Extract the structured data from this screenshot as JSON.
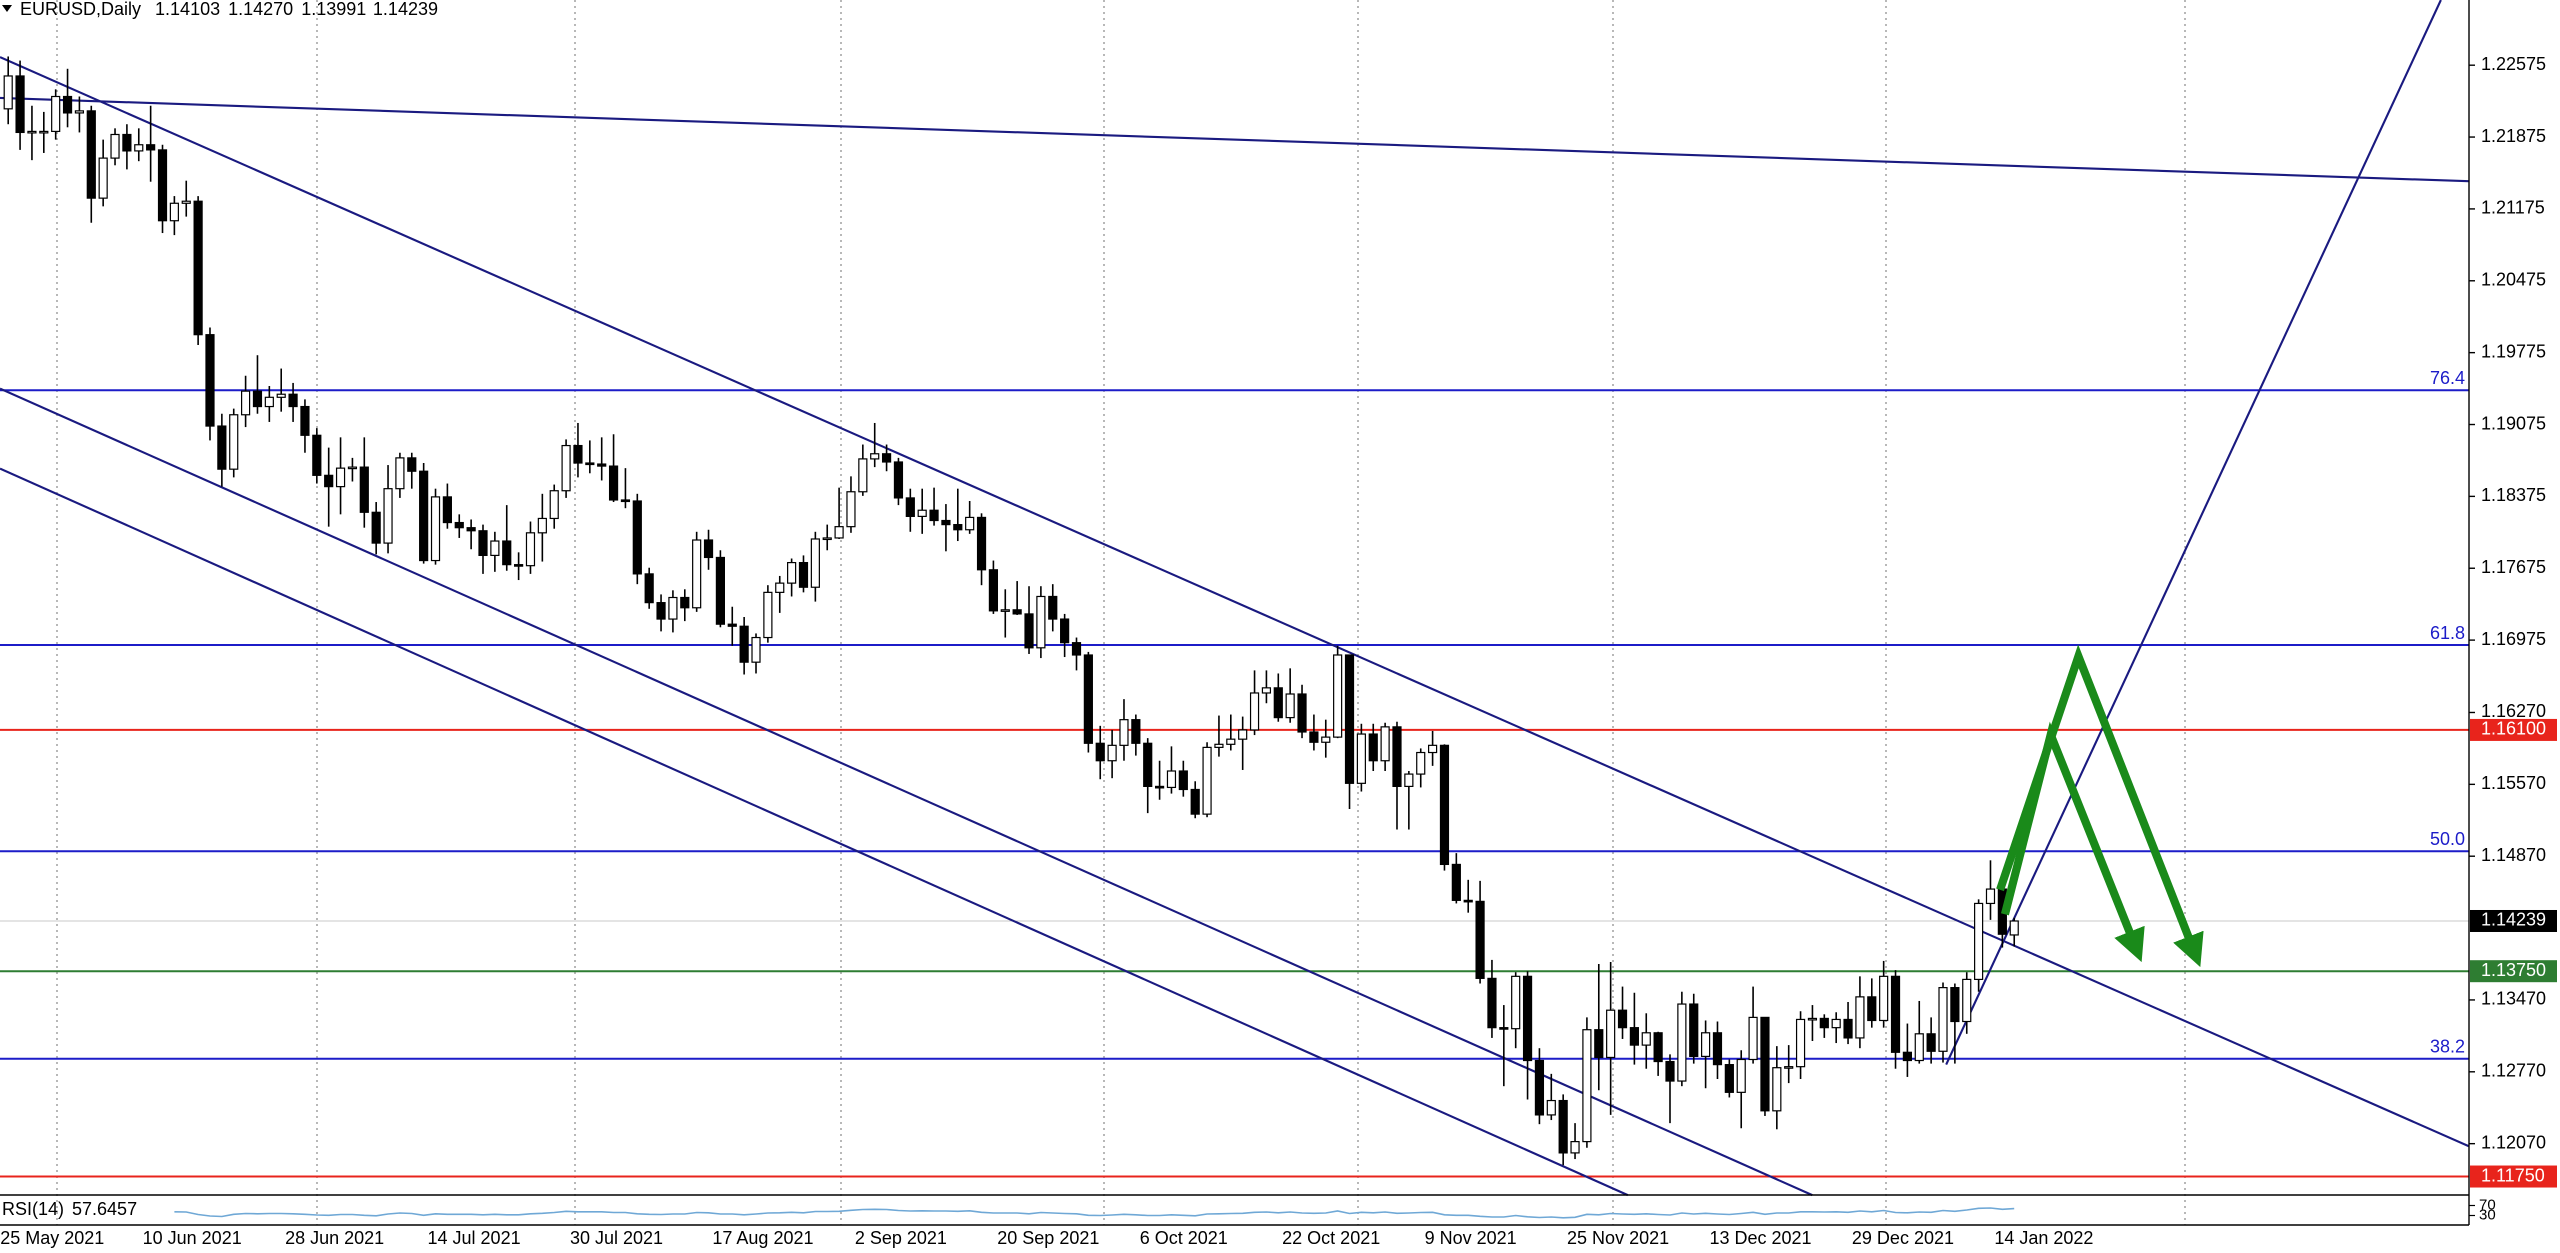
{
  "chart_data": {
    "type": "candlestick",
    "symbol": "EURUSD,Daily",
    "ohlc_labels": [
      "1.14103",
      "1.14270",
      "1.13991",
      "1.14239"
    ],
    "candle_up_color": "#ffffff",
    "candle_down_color": "#000000",
    "ylim": [
      1.1157,
      1.2321
    ],
    "yticks": [
      1.22575,
      1.21875,
      1.21175,
      1.20475,
      1.19775,
      1.19075,
      1.18375,
      1.17675,
      1.16975,
      {
        "value": 1.1627,
        "label": "1.16270"
      },
      {
        "value": 1.1557,
        "label": "1.15570"
      },
      {
        "value": 1.1487,
        "label": "1.14870"
      },
      {
        "value": 1.1347,
        "label": "1.13470"
      },
      {
        "value": 1.1277,
        "label": "1.12770"
      },
      {
        "value": 1.1207,
        "label": "1.12070"
      }
    ],
    "fib_color": "#1c1cc8",
    "fib_levels": [
      {
        "value": 1.19409,
        "label": "76.4"
      },
      {
        "value": 1.16927,
        "label": "61.8"
      },
      {
        "value": 1.14918,
        "label": "50.0"
      },
      {
        "value": 1.12897,
        "label": "38.2"
      }
    ],
    "price_levels": [
      {
        "value": 1.161,
        "label": "1.16100",
        "color": "#e8241c"
      },
      {
        "value": 1.1375,
        "label": "1.13750",
        "color": "#2e7d32"
      },
      {
        "value": 1.1175,
        "label": "1.11750",
        "color": "#e8241c"
      }
    ],
    "price_line": {
      "value": 1.14239,
      "label": "1.14239",
      "color": "#000000"
    },
    "categories": [
      "25 May 2021",
      null,
      null,
      null,
      null,
      null,
      null,
      null,
      null,
      null,
      null,
      null,
      "10 Jun 2021",
      null,
      null,
      null,
      null,
      null,
      null,
      null,
      null,
      null,
      null,
      null,
      "28 Jun 2021",
      null,
      null,
      null,
      null,
      null,
      null,
      null,
      null,
      null,
      null,
      null,
      "14 Jul 2021",
      null,
      null,
      null,
      null,
      null,
      null,
      null,
      null,
      null,
      null,
      null,
      "30 Jul 2021",
      null,
      null,
      null,
      null,
      null,
      null,
      null,
      null,
      null,
      null,
      null,
      "17 Aug 2021",
      null,
      null,
      null,
      null,
      null,
      null,
      null,
      null,
      null,
      null,
      null,
      "2 Sep 2021",
      null,
      null,
      null,
      null,
      null,
      null,
      null,
      null,
      null,
      null,
      null,
      "20 Sep 2021",
      null,
      null,
      null,
      null,
      null,
      null,
      null,
      null,
      null,
      null,
      null,
      "6 Oct 2021",
      null,
      null,
      null,
      null,
      null,
      null,
      null,
      null,
      null,
      null,
      null,
      "22 Oct 2021",
      null,
      null,
      null,
      null,
      null,
      null,
      null,
      null,
      null,
      null,
      null,
      "9 Nov 2021",
      null,
      null,
      null,
      null,
      null,
      null,
      null,
      null,
      null,
      null,
      null,
      "25 Nov 2021",
      null,
      null,
      null,
      null,
      null,
      null,
      null,
      null,
      null,
      null,
      null,
      "13 Dec 2021",
      null,
      null,
      null,
      null,
      null,
      null,
      null,
      null,
      null,
      null,
      null,
      "29 Dec 2021",
      null,
      null,
      null,
      null,
      null,
      null,
      null,
      null,
      null,
      null,
      null,
      "14 Jan 2022",
      null
    ],
    "candles": [
      [
        1.2215,
        1.2266,
        1.22,
        1.2247
      ],
      [
        1.2247,
        1.2262,
        1.2175,
        1.2192
      ],
      [
        1.2192,
        1.2218,
        1.2165,
        1.2193
      ],
      [
        1.2193,
        1.2212,
        1.2172,
        1.2193
      ],
      [
        1.2193,
        1.2234,
        1.2185,
        1.2227
      ],
      [
        1.2227,
        1.2254,
        1.2197,
        1.2211
      ],
      [
        1.2211,
        1.2227,
        1.2192,
        1.2213
      ],
      [
        1.2213,
        1.2218,
        1.2104,
        1.2128
      ],
      [
        1.2128,
        1.2185,
        1.212,
        1.2167
      ],
      [
        1.2167,
        1.2196,
        1.216,
        1.219
      ],
      [
        1.219,
        1.22,
        1.2156,
        1.2174
      ],
      [
        1.2174,
        1.2196,
        1.2164,
        1.218
      ],
      [
        1.218,
        1.2218,
        1.2144,
        1.2175
      ],
      [
        1.2175,
        1.218,
        1.2094,
        1.2106
      ],
      [
        1.2106,
        1.213,
        1.2092,
        1.2123
      ],
      [
        1.2123,
        1.2145,
        1.211,
        1.2125
      ],
      [
        1.2125,
        1.213,
        1.1985,
        1.1995
      ],
      [
        1.1995,
        1.2002,
        1.1892,
        1.1906
      ],
      [
        1.1906,
        1.1918,
        1.1847,
        1.1864
      ],
      [
        1.1864,
        1.1923,
        1.1856,
        1.1917
      ],
      [
        1.1917,
        1.1955,
        1.1905,
        1.194
      ],
      [
        1.194,
        1.1975,
        1.1918,
        1.1925
      ],
      [
        1.1925,
        1.1945,
        1.191,
        1.1934
      ],
      [
        1.1934,
        1.1962,
        1.192,
        1.1937
      ],
      [
        1.1937,
        1.1948,
        1.191,
        1.1925
      ],
      [
        1.1925,
        1.1932,
        1.188,
        1.1897
      ],
      [
        1.1897,
        1.1904,
        1.185,
        1.1858
      ],
      [
        1.1858,
        1.1885,
        1.1808,
        1.1847
      ],
      [
        1.1847,
        1.1895,
        1.182,
        1.1865
      ],
      [
        1.1865,
        1.1875,
        1.1852,
        1.1866
      ],
      [
        1.1866,
        1.1895,
        1.1807,
        1.1822
      ],
      [
        1.1822,
        1.1832,
        1.1781,
        1.1792
      ],
      [
        1.1792,
        1.1868,
        1.1782,
        1.1845
      ],
      [
        1.1845,
        1.188,
        1.1836,
        1.1875
      ],
      [
        1.1875,
        1.188,
        1.1845,
        1.1862
      ],
      [
        1.1862,
        1.187,
        1.1772,
        1.1775
      ],
      [
        1.1775,
        1.1845,
        1.1771,
        1.1837
      ],
      [
        1.1837,
        1.185,
        1.1806,
        1.1812
      ],
      [
        1.1812,
        1.182,
        1.1797,
        1.1807
      ],
      [
        1.1807,
        1.1815,
        1.1786,
        1.1804
      ],
      [
        1.1804,
        1.181,
        1.1762,
        1.178
      ],
      [
        1.178,
        1.1803,
        1.1764,
        1.1794
      ],
      [
        1.1794,
        1.1829,
        1.1765,
        1.1771
      ],
      [
        1.1771,
        1.1783,
        1.1756,
        1.177
      ],
      [
        1.177,
        1.1813,
        1.1762,
        1.1802
      ],
      [
        1.1802,
        1.184,
        1.1774,
        1.1816
      ],
      [
        1.1816,
        1.1849,
        1.1806,
        1.1843
      ],
      [
        1.1843,
        1.1893,
        1.1836,
        1.1887
      ],
      [
        1.1887,
        1.1909,
        1.1856,
        1.187
      ],
      [
        1.187,
        1.1892,
        1.186,
        1.1869
      ],
      [
        1.1869,
        1.1895,
        1.1853,
        1.1867
      ],
      [
        1.1867,
        1.1898,
        1.1832,
        1.1834
      ],
      [
        1.1834,
        1.1865,
        1.1826,
        1.1833
      ],
      [
        1.1833,
        1.184,
        1.1752,
        1.1762
      ],
      [
        1.1762,
        1.1768,
        1.1728,
        1.1734
      ],
      [
        1.1734,
        1.1742,
        1.1706,
        1.1718
      ],
      [
        1.1718,
        1.1746,
        1.1705,
        1.1739
      ],
      [
        1.1739,
        1.1747,
        1.1716,
        1.1729
      ],
      [
        1.1729,
        1.1803,
        1.1725,
        1.1795
      ],
      [
        1.1795,
        1.1805,
        1.1766,
        1.1778
      ],
      [
        1.1778,
        1.1785,
        1.171,
        1.1713
      ],
      [
        1.1713,
        1.173,
        1.1692,
        1.1711
      ],
      [
        1.1711,
        1.172,
        1.1664,
        1.1676
      ],
      [
        1.1676,
        1.1704,
        1.1665,
        1.17
      ],
      [
        1.17,
        1.1751,
        1.1695,
        1.1744
      ],
      [
        1.1744,
        1.176,
        1.1724,
        1.1753
      ],
      [
        1.1753,
        1.1777,
        1.174,
        1.1773
      ],
      [
        1.1773,
        1.178,
        1.1744,
        1.1749
      ],
      [
        1.1749,
        1.1803,
        1.1735,
        1.1796
      ],
      [
        1.1796,
        1.181,
        1.1785,
        1.1797
      ],
      [
        1.1797,
        1.1846,
        1.1796,
        1.1808
      ],
      [
        1.1808,
        1.1857,
        1.1802,
        1.1842
      ],
      [
        1.1842,
        1.1888,
        1.1838,
        1.1874
      ],
      [
        1.1874,
        1.1909,
        1.1866,
        1.1879
      ],
      [
        1.1879,
        1.1888,
        1.1862,
        1.1871
      ],
      [
        1.1871,
        1.1875,
        1.1829,
        1.1836
      ],
      [
        1.1836,
        1.1845,
        1.1803,
        1.1818
      ],
      [
        1.1818,
        1.1845,
        1.1801,
        1.1824
      ],
      [
        1.1824,
        1.1846,
        1.1809,
        1.1814
      ],
      [
        1.1814,
        1.183,
        1.1784,
        1.181
      ],
      [
        1.181,
        1.1845,
        1.1794,
        1.1805
      ],
      [
        1.1805,
        1.1833,
        1.1801,
        1.1817
      ],
      [
        1.1817,
        1.1821,
        1.1751,
        1.1766
      ],
      [
        1.1766,
        1.1775,
        1.1723,
        1.1726
      ],
      [
        1.1726,
        1.1747,
        1.17,
        1.1727
      ],
      [
        1.1727,
        1.1755,
        1.1722,
        1.1723
      ],
      [
        1.1723,
        1.175,
        1.1684,
        1.169
      ],
      [
        1.169,
        1.175,
        1.168,
        1.174
      ],
      [
        1.174,
        1.1752,
        1.1706,
        1.1718
      ],
      [
        1.1718,
        1.1723,
        1.1681,
        1.1695
      ],
      [
        1.1695,
        1.17,
        1.1668,
        1.1683
      ],
      [
        1.1683,
        1.1686,
        1.1588,
        1.1597
      ],
      [
        1.1597,
        1.1614,
        1.1562,
        1.158
      ],
      [
        1.158,
        1.161,
        1.1563,
        1.1595
      ],
      [
        1.1595,
        1.164,
        1.158,
        1.162
      ],
      [
        1.162,
        1.1625,
        1.1585,
        1.1597
      ],
      [
        1.1597,
        1.1602,
        1.1529,
        1.1555
      ],
      [
        1.1555,
        1.158,
        1.1542,
        1.1554
      ],
      [
        1.1554,
        1.1594,
        1.1548,
        1.157
      ],
      [
        1.157,
        1.158,
        1.1545,
        1.1552
      ],
      [
        1.1552,
        1.156,
        1.1524,
        1.1528
      ],
      [
        1.1528,
        1.1598,
        1.1525,
        1.1593
      ],
      [
        1.1593,
        1.1624,
        1.1584,
        1.1596
      ],
      [
        1.1596,
        1.1625,
        1.159,
        1.1601
      ],
      [
        1.1601,
        1.1623,
        1.1571,
        1.161
      ],
      [
        1.161,
        1.1668,
        1.1605,
        1.1646
      ],
      [
        1.1646,
        1.1668,
        1.1636,
        1.1651
      ],
      [
        1.1651,
        1.1665,
        1.1618,
        1.1622
      ],
      [
        1.1622,
        1.167,
        1.1617,
        1.1645
      ],
      [
        1.1645,
        1.1654,
        1.1602,
        1.1608
      ],
      [
        1.1608,
        1.1625,
        1.159,
        1.1598
      ],
      [
        1.1598,
        1.162,
        1.1583,
        1.1603
      ],
      [
        1.1603,
        1.1692,
        1.1602,
        1.1683
      ],
      [
        1.1683,
        1.1683,
        1.1533,
        1.1558
      ],
      [
        1.1558,
        1.1616,
        1.155,
        1.1606
      ],
      [
        1.1606,
        1.1616,
        1.157,
        1.158
      ],
      [
        1.158,
        1.1617,
        1.157,
        1.1613
      ],
      [
        1.1613,
        1.1618,
        1.1513,
        1.1555
      ],
      [
        1.1555,
        1.157,
        1.1513,
        1.1567
      ],
      [
        1.1567,
        1.1592,
        1.1554,
        1.1588
      ],
      [
        1.1588,
        1.1609,
        1.1575,
        1.1595
      ],
      [
        1.1595,
        1.1596,
        1.1473,
        1.1479
      ],
      [
        1.1479,
        1.149,
        1.1441,
        1.1444
      ],
      [
        1.1444,
        1.1464,
        1.1432,
        1.1443
      ],
      [
        1.1443,
        1.1463,
        1.1363,
        1.1368
      ],
      [
        1.1368,
        1.1386,
        1.131,
        1.132
      ],
      [
        1.132,
        1.1342,
        1.1263,
        1.1319
      ],
      [
        1.1319,
        1.1374,
        1.13,
        1.137
      ],
      [
        1.137,
        1.1375,
        1.125,
        1.1288
      ],
      [
        1.1288,
        1.13,
        1.1226,
        1.1235
      ],
      [
        1.1235,
        1.1275,
        1.123,
        1.1249
      ],
      [
        1.1249,
        1.1255,
        1.1186,
        1.1198
      ],
      [
        1.1198,
        1.1227,
        1.1192,
        1.1209
      ],
      [
        1.1209,
        1.133,
        1.1203,
        1.1318
      ],
      [
        1.1318,
        1.1382,
        1.1259,
        1.1291
      ],
      [
        1.1291,
        1.1384,
        1.1235,
        1.1337
      ],
      [
        1.1337,
        1.136,
        1.1309,
        1.132
      ],
      [
        1.132,
        1.1354,
        1.1284,
        1.1303
      ],
      [
        1.1303,
        1.1334,
        1.128,
        1.1315
      ],
      [
        1.1315,
        1.1316,
        1.1273,
        1.1287
      ],
      [
        1.1287,
        1.1294,
        1.1227,
        1.1268
      ],
      [
        1.1268,
        1.1355,
        1.1263,
        1.1343
      ],
      [
        1.1343,
        1.1353,
        1.1285,
        1.1292
      ],
      [
        1.1292,
        1.1327,
        1.1261,
        1.1315
      ],
      [
        1.1315,
        1.1326,
        1.127,
        1.1284
      ],
      [
        1.1284,
        1.1289,
        1.1252,
        1.1257
      ],
      [
        1.1257,
        1.1298,
        1.1222,
        1.1289
      ],
      [
        1.1289,
        1.136,
        1.1285,
        1.133
      ],
      [
        1.133,
        1.133,
        1.1234,
        1.1239
      ],
      [
        1.1239,
        1.1302,
        1.1221,
        1.1281
      ],
      [
        1.1281,
        1.1303,
        1.1266,
        1.1282
      ],
      [
        1.1282,
        1.1336,
        1.127,
        1.1328
      ],
      [
        1.1328,
        1.1342,
        1.1307,
        1.1329
      ],
      [
        1.1329,
        1.1333,
        1.131,
        1.132
      ],
      [
        1.132,
        1.1335,
        1.1305,
        1.1328
      ],
      [
        1.1328,
        1.1345,
        1.1304,
        1.131
      ],
      [
        1.131,
        1.137,
        1.13,
        1.135
      ],
      [
        1.135,
        1.1368,
        1.132,
        1.1327
      ],
      [
        1.1327,
        1.1385,
        1.132,
        1.137
      ],
      [
        1.137,
        1.1376,
        1.128,
        1.1296
      ],
      [
        1.1296,
        1.1324,
        1.1272,
        1.1288
      ],
      [
        1.1288,
        1.1346,
        1.1285,
        1.1314
      ],
      [
        1.1314,
        1.133,
        1.1285,
        1.1297
      ],
      [
        1.1297,
        1.1364,
        1.1286,
        1.1359
      ],
      [
        1.1359,
        1.1363,
        1.1285,
        1.1326
      ],
      [
        1.1326,
        1.1374,
        1.1314,
        1.1367
      ],
      [
        1.1367,
        1.1445,
        1.1355,
        1.1441
      ],
      [
        1.1441,
        1.1483,
        1.1425,
        1.1455
      ],
      [
        1.1455,
        1.1465,
        1.1398,
        1.1411
      ],
      [
        1.14103,
        1.1427,
        1.13991,
        1.14239
      ]
    ],
    "rsi": {
      "name": "RSI(14)",
      "color": "#6fa8d6",
      "ylim": [
        0,
        100
      ],
      "yticks": [
        70,
        30
      ],
      "values": [
        null,
        null,
        null,
        null,
        null,
        null,
        null,
        null,
        null,
        null,
        null,
        null,
        null,
        null,
        45,
        44,
        34,
        28,
        26,
        35,
        38,
        37,
        38,
        38,
        37,
        35,
        32,
        31,
        34,
        34,
        31,
        29,
        36,
        40,
        38,
        31,
        37,
        35,
        35,
        35,
        33,
        35,
        33,
        33,
        37,
        39,
        42,
        47,
        45,
        45,
        45,
        42,
        42,
        37,
        35,
        34,
        36,
        36,
        42,
        41,
        36,
        36,
        33,
        36,
        40,
        41,
        43,
        41,
        46,
        46,
        47,
        51,
        54,
        55,
        54,
        50,
        48,
        49,
        48,
        48,
        47,
        49,
        43,
        40,
        40,
        40,
        37,
        42,
        40,
        38,
        37,
        31,
        30,
        32,
        35,
        33,
        30,
        30,
        33,
        31,
        29,
        36,
        37,
        38,
        39,
        43,
        44,
        41,
        44,
        40,
        39,
        40,
        48,
        38,
        43,
        41,
        44,
        39,
        40,
        42,
        43,
        33,
        31,
        31,
        27,
        24,
        24,
        30,
        25,
        22,
        24,
        21,
        23,
        35,
        33,
        38,
        36,
        35,
        37,
        34,
        32,
        40,
        36,
        39,
        36,
        34,
        38,
        43,
        35,
        40,
        40,
        45,
        45,
        44,
        45,
        43,
        48,
        45,
        50,
        42,
        41,
        44,
        43,
        50,
        47,
        52,
        59,
        60,
        55,
        57.6457
      ]
    }
  }
}
